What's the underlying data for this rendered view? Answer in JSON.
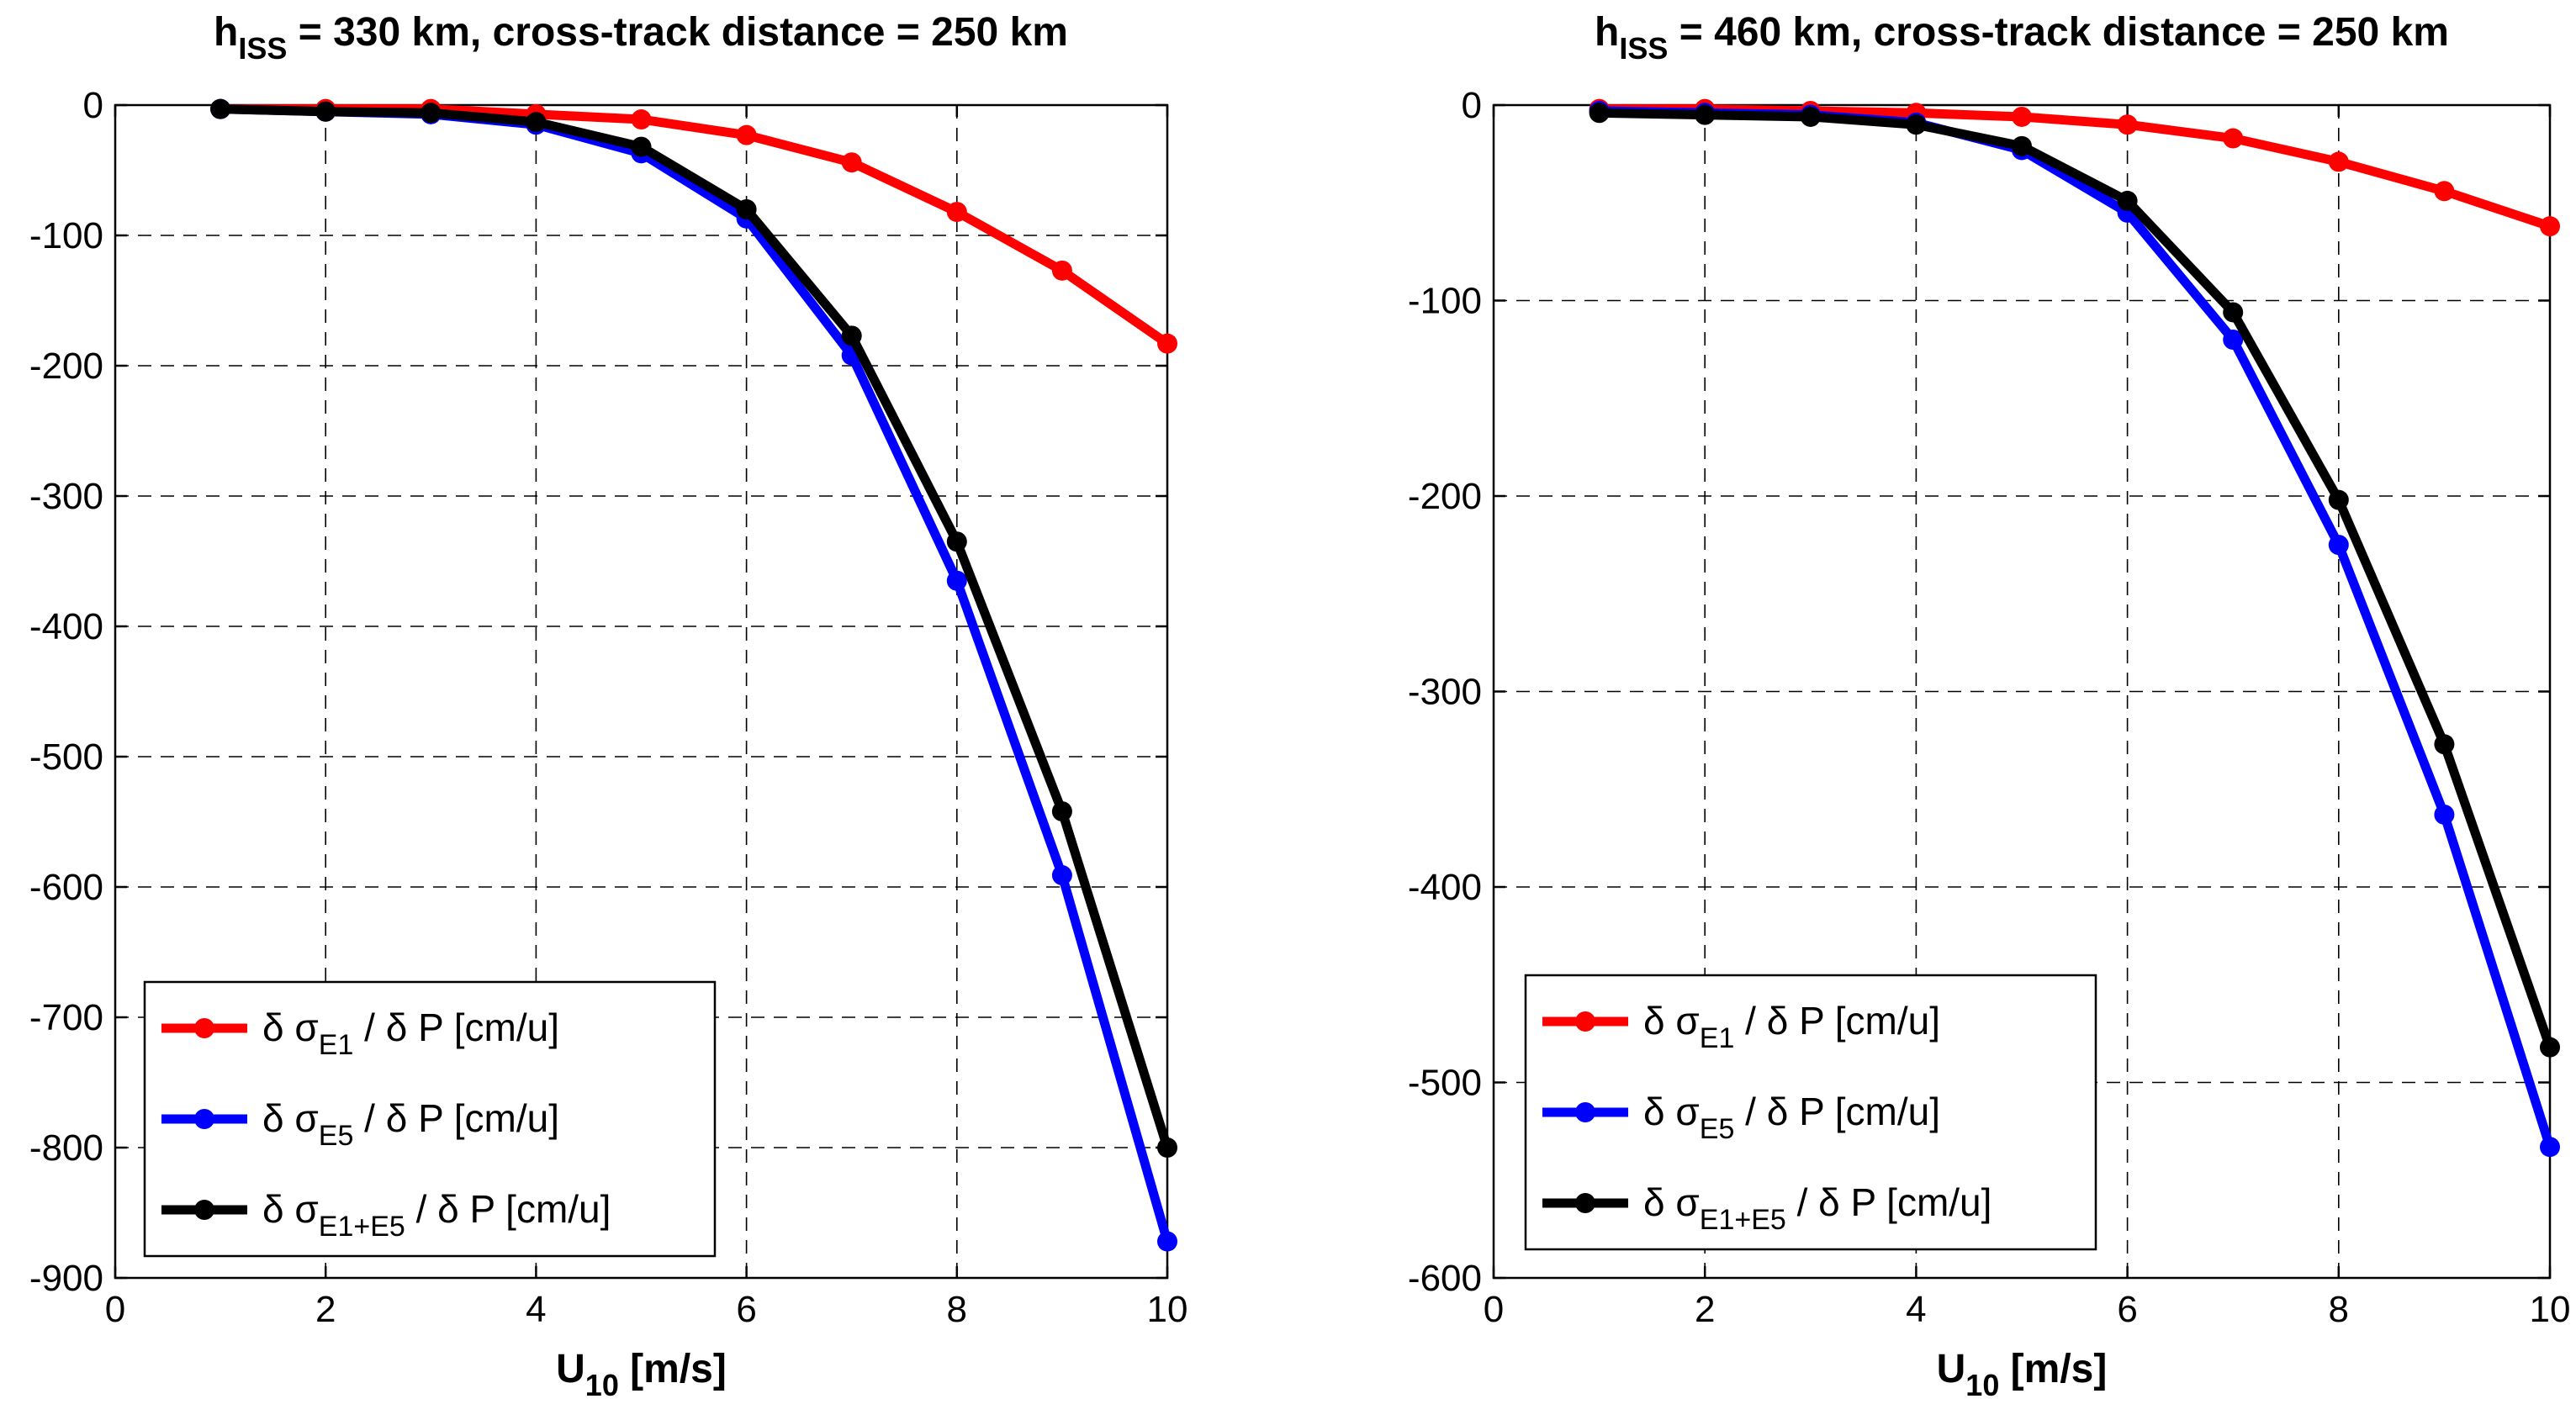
{
  "chart_data": [
    {
      "type": "line",
      "title": "h",
      "title_sub": "ISS",
      "title_rest": " = 330 km, cross-track distance = 250 km",
      "xlabel": "U",
      "xlabel_sub": "10",
      "xlabel_rest": " [m/s]",
      "ylabel": "",
      "xlim": [
        0,
        10
      ],
      "ylim": [
        -900,
        0
      ],
      "xticks": [
        0,
        2,
        4,
        6,
        8,
        10
      ],
      "yticks": [
        0,
        -100,
        -200,
        -300,
        -400,
        -500,
        -600,
        -700,
        -800,
        -900
      ],
      "grid": true,
      "legend_position": "bottom-left",
      "x": [
        1,
        2,
        3,
        4,
        5,
        6,
        7,
        8,
        9,
        10
      ],
      "series": [
        {
          "name": "δ σE1 / δ P [cm/u]",
          "legend_pre": "δ σ",
          "legend_sub": "E1",
          "legend_post": " / δ P [cm/u]",
          "color": "#ff0000",
          "values": [
            -3,
            -3,
            -3,
            -7,
            -11,
            -23,
            -44,
            -82,
            -127,
            -183
          ]
        },
        {
          "name": "δ σE5 / δ P [cm/u]",
          "legend_pre": "δ σ",
          "legend_sub": "E5",
          "legend_post": " / δ P [cm/u]",
          "color": "#0000ff",
          "values": [
            -3,
            -5,
            -7,
            -15,
            -37,
            -87,
            -192,
            -365,
            -591,
            -872
          ]
        },
        {
          "name": "δ σE1+E5 / δ P [cm/u]",
          "legend_pre": "δ σ",
          "legend_sub": "E1+E5",
          "legend_post": " / δ P [cm/u]",
          "color": "#000000",
          "values": [
            -3,
            -5,
            -6,
            -13,
            -32,
            -80,
            -177,
            -335,
            -542,
            -800
          ]
        }
      ]
    },
    {
      "type": "line",
      "title": "h",
      "title_sub": "ISS",
      "title_rest": " = 460 km, cross-track distance = 250 km",
      "xlabel": "U",
      "xlabel_sub": "10",
      "xlabel_rest": " [m/s]",
      "ylabel": "",
      "xlim": [
        0,
        10
      ],
      "ylim": [
        -600,
        0
      ],
      "xticks": [
        0,
        2,
        4,
        6,
        8,
        10
      ],
      "yticks": [
        0,
        -100,
        -200,
        -300,
        -400,
        -500,
        -600
      ],
      "grid": true,
      "legend_position": "bottom-left",
      "x": [
        1,
        2,
        3,
        4,
        5,
        6,
        7,
        8,
        9,
        10
      ],
      "series": [
        {
          "name": "δ σE1 / δ P [cm/u]",
          "legend_pre": "δ σ",
          "legend_sub": "E1",
          "legend_post": " / δ P [cm/u]",
          "color": "#ff0000",
          "values": [
            -2,
            -2,
            -3,
            -4,
            -6,
            -10,
            -17,
            -29,
            -44,
            -62
          ]
        },
        {
          "name": "δ σE5 / δ P [cm/u]",
          "legend_pre": "δ σ",
          "legend_sub": "E5",
          "legend_post": " / δ P [cm/u]",
          "color": "#0000ff",
          "values": [
            -3,
            -4,
            -5,
            -9,
            -23,
            -55,
            -120,
            -225,
            -363,
            -533
          ]
        },
        {
          "name": "δ σE1+E5 / δ P [cm/u]",
          "legend_pre": "δ σ",
          "legend_sub": "E1+E5",
          "legend_post": " / δ P [cm/u]",
          "color": "#000000",
          "values": [
            -4,
            -5,
            -6,
            -10,
            -21,
            -49,
            -106,
            -202,
            -327,
            -482
          ]
        }
      ]
    }
  ]
}
